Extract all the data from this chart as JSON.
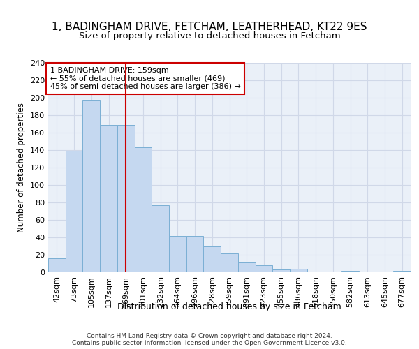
{
  "title1": "1, BADINGHAM DRIVE, FETCHAM, LEATHERHEAD, KT22 9ES",
  "title2": "Size of property relative to detached houses in Fetcham",
  "xlabel": "Distribution of detached houses by size in Fetcham",
  "ylabel": "Number of detached properties",
  "bar_values": [
    16,
    139,
    198,
    169,
    169,
    143,
    77,
    42,
    42,
    30,
    22,
    11,
    8,
    3,
    4,
    1,
    1,
    2,
    0,
    0,
    2
  ],
  "bar_labels": [
    "42sqm",
    "73sqm",
    "105sqm",
    "137sqm",
    "169sqm",
    "201sqm",
    "232sqm",
    "264sqm",
    "296sqm",
    "328sqm",
    "359sqm",
    "391sqm",
    "423sqm",
    "455sqm",
    "486sqm",
    "518sqm",
    "550sqm",
    "582sqm",
    "613sqm",
    "645sqm",
    "677sqm"
  ],
  "bar_color": "#c5d8f0",
  "bar_edge_color": "#7bafd4",
  "vline_color": "#cc0000",
  "vline_x": 4.5,
  "annotation_line1": "1 BADINGHAM DRIVE: 159sqm",
  "annotation_line2": "← 55% of detached houses are smaller (469)",
  "annotation_line3": "45% of semi-detached houses are larger (386) →",
  "annotation_box_color": "#ffffff",
  "annotation_box_edge_color": "#cc0000",
  "footer": "Contains HM Land Registry data © Crown copyright and database right 2024.\nContains public sector information licensed under the Open Government Licence v3.0.",
  "ylim": [
    0,
    240
  ],
  "yticks": [
    0,
    20,
    40,
    60,
    80,
    100,
    120,
    140,
    160,
    180,
    200,
    220,
    240
  ],
  "grid_color": "#d0d8e8",
  "plot_bg_color": "#eaf0f8",
  "fig_bg_color": "#ffffff",
  "title1_fontsize": 11,
  "title2_fontsize": 9.5,
  "xlabel_fontsize": 9,
  "ylabel_fontsize": 8.5,
  "tick_fontsize": 8,
  "annotation_fontsize": 8,
  "footer_fontsize": 6.5
}
